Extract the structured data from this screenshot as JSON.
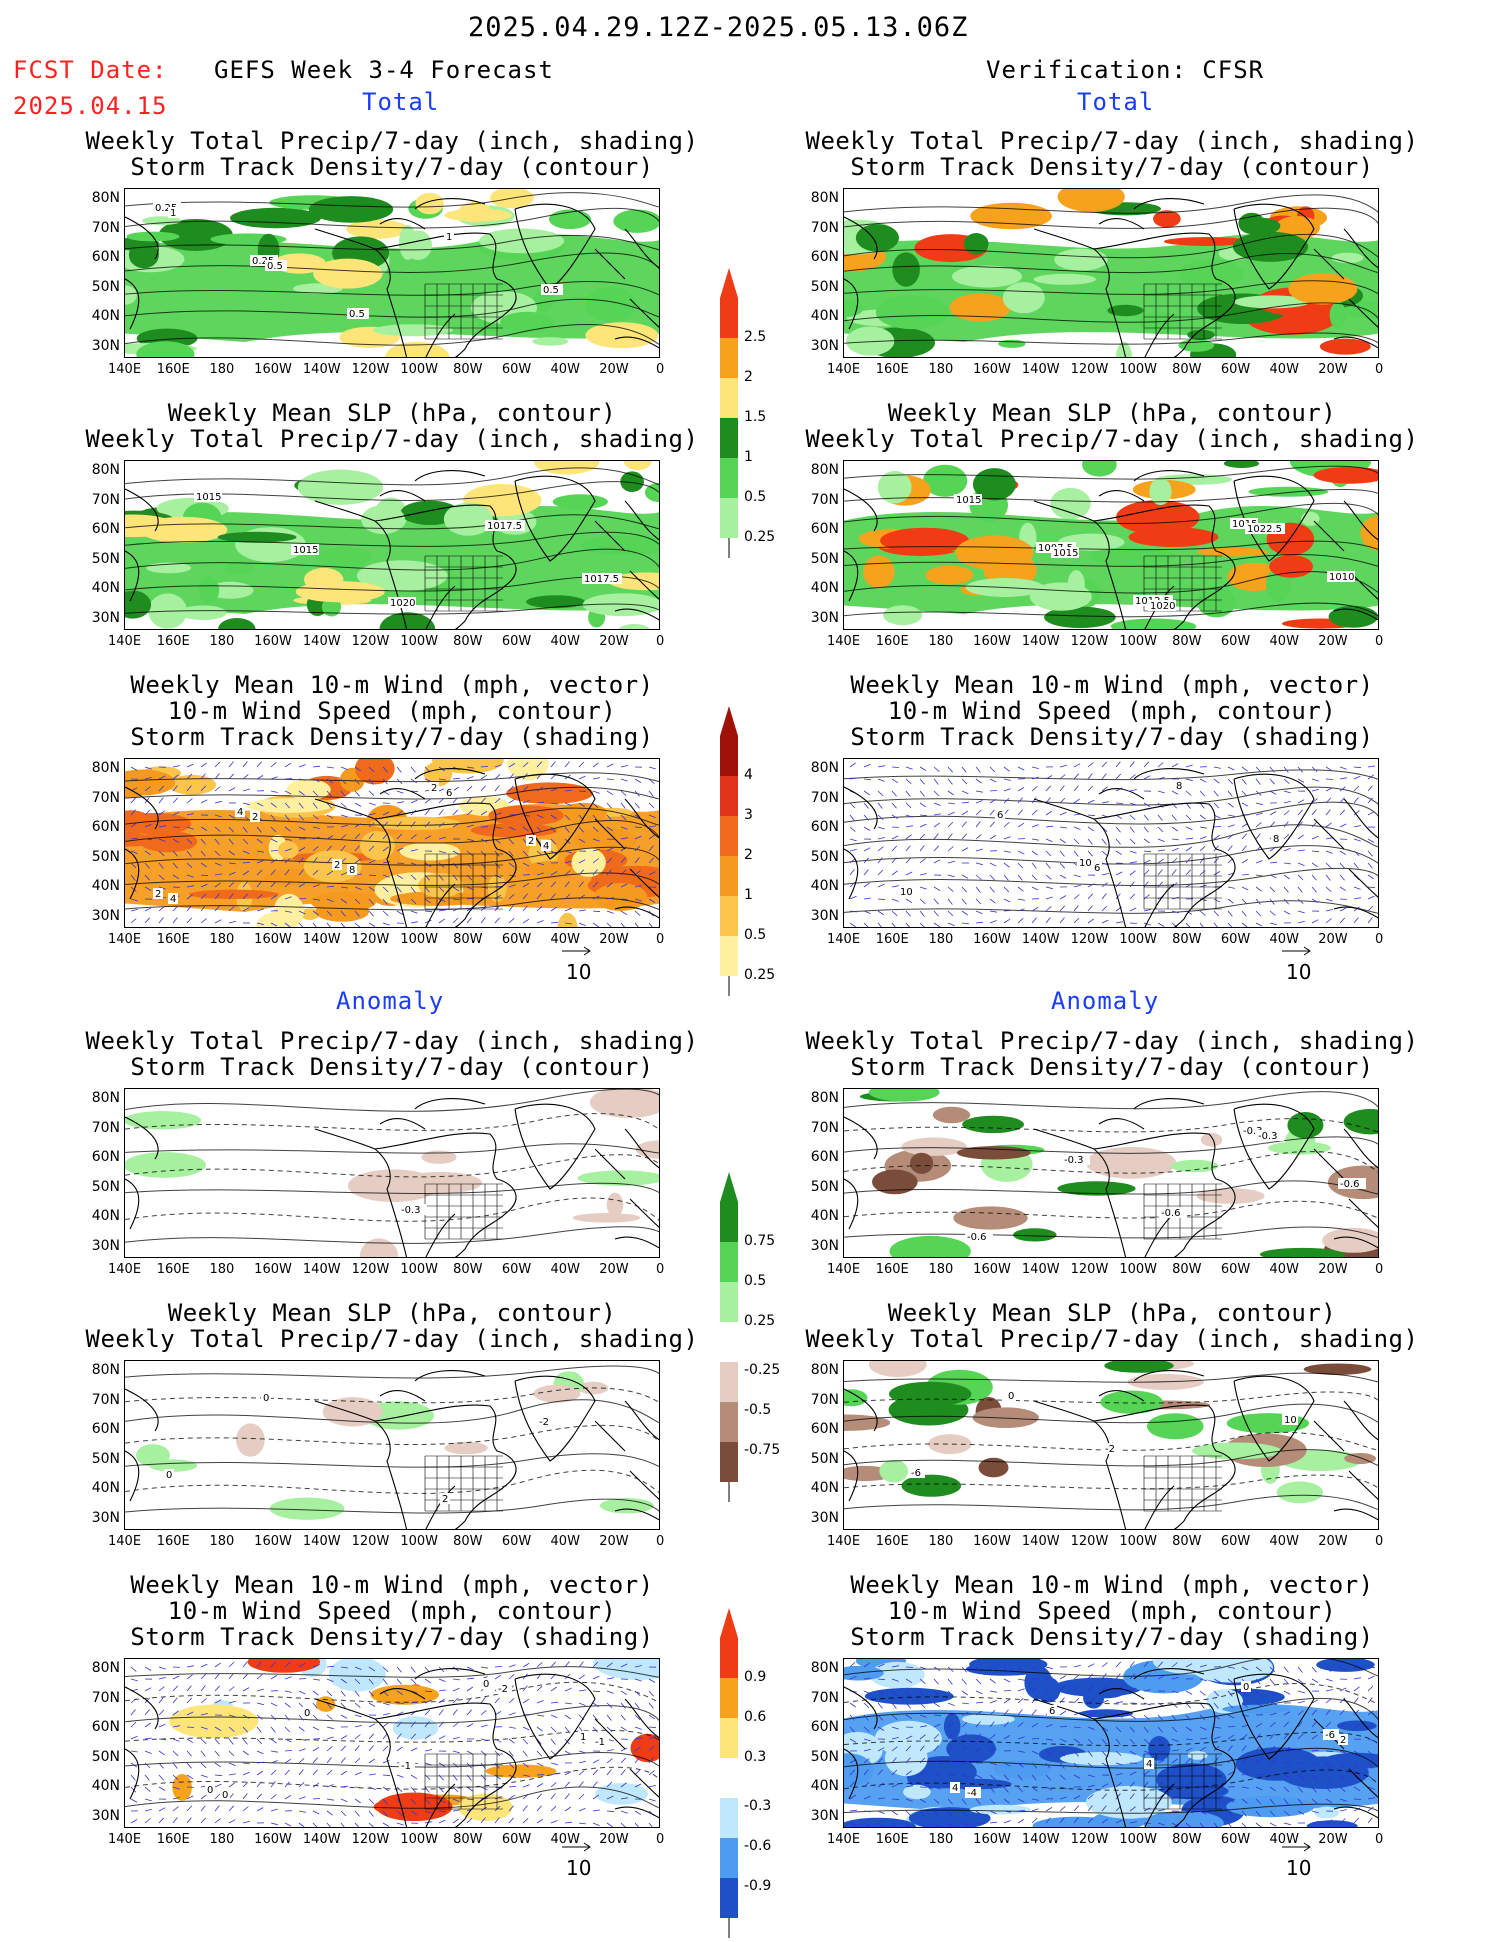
{
  "header": {
    "date_range": "2025.04.29.12Z-2025.05.13.06Z",
    "fcst_label": "FCST Date:",
    "fcst_date": "2025.04.15",
    "left_title": "GEFS Week 3-4 Forecast",
    "right_title": "Verification: CFSR",
    "total_label": "Total",
    "anomaly_label": "Anomaly"
  },
  "axes": {
    "lat_labels": [
      "80N",
      "70N",
      "60N",
      "50N",
      "40N",
      "30N"
    ],
    "lon_labels": [
      "140E",
      "160E",
      "180",
      "160W",
      "140W",
      "120W",
      "100W",
      "80W",
      "60W",
      "40W",
      "20W",
      "0"
    ]
  },
  "panels": [
    {
      "id": "fc-total-precip",
      "title": [
        "Weekly Total Precip/7-day (inch, shading)",
        "Storm Track Density/7-day (contour)"
      ],
      "labels": [
        "0.25",
        "0.25",
        "0.5",
        "1",
        "0.5",
        "1",
        "0.5"
      ]
    },
    {
      "id": "fc-total-slp",
      "title": [
        "Weekly Mean SLP (hPa, contour)",
        "Weekly Total Precip/7-day (inch, shading)"
      ],
      "labels": [
        "1015",
        "1015",
        "1020",
        "1017.5",
        "1017.5"
      ]
    },
    {
      "id": "fc-total-wind",
      "title": [
        "Weekly Mean 10-m Wind (mph, vector)",
        "10-m Wind Speed (mph, contour)",
        "Storm Track Density/7-day (shading)"
      ],
      "labels": [
        "4",
        "2",
        "2",
        "2",
        "2",
        "2",
        "8",
        "6",
        "4",
        "4"
      ]
    },
    {
      "id": "ver-total-precip",
      "title": [
        "Weekly Total Precip/7-day (inch, shading)",
        "Storm Track Density/7-day (contour)"
      ],
      "labels": []
    },
    {
      "id": "ver-total-slp",
      "title": [
        "Weekly Mean SLP (hPa, contour)",
        "Weekly Total Precip/7-day (inch, shading)"
      ],
      "labels": [
        "1007.5",
        "1012.5",
        "1015",
        "1010",
        "1015",
        "1015",
        "1020",
        "1022.5"
      ]
    },
    {
      "id": "ver-total-wind",
      "title": [
        "Weekly Mean 10-m Wind (mph, vector)",
        "10-m Wind Speed (mph, contour)",
        "Storm Track Density/7-day (shading)"
      ],
      "labels": [
        "10",
        "8",
        "8",
        "10",
        "6",
        "6"
      ]
    },
    {
      "id": "fc-anom-precip",
      "title": [
        "Weekly Total Precip/7-day (inch, shading)",
        "Storm Track Density/7-day (contour)"
      ],
      "labels": [
        "-0.3"
      ]
    },
    {
      "id": "fc-anom-slp",
      "title": [
        "Weekly Mean SLP (hPa, contour)",
        "Weekly Total Precip/7-day (inch, shading)"
      ],
      "labels": [
        "2",
        "-2",
        "0",
        "0"
      ]
    },
    {
      "id": "fc-anom-wind",
      "title": [
        "Weekly Mean 10-m Wind (mph, vector)",
        "10-m Wind Speed (mph, contour)",
        "Storm Track Density/7-day (shading)"
      ],
      "labels": [
        "0",
        "1",
        "0",
        "0",
        "-1",
        "-2",
        "-1",
        "0"
      ]
    },
    {
      "id": "ver-anom-precip",
      "title": [
        "Weekly Total Precip/7-day (inch, shading)",
        "Storm Track Density/7-day (contour)"
      ],
      "labels": [
        "-0.3",
        "-0.6",
        "-0.6",
        "-0.3",
        "-0.6",
        "-0.3"
      ]
    },
    {
      "id": "ver-anom-slp",
      "title": [
        "Weekly Mean SLP (hPa, contour)",
        "Weekly Total Precip/7-day (inch, shading)"
      ],
      "labels": [
        "10",
        "-6",
        "0",
        "-2"
      ]
    },
    {
      "id": "ver-anom-wind",
      "title": [
        "Weekly Mean 10-m Wind (mph, vector)",
        "10-m Wind Speed (mph, contour)",
        "Storm Track Density/7-day (shading)"
      ],
      "labels": [
        "-6",
        "4",
        "6",
        "4",
        "0",
        "2",
        "-4"
      ]
    }
  ],
  "colorbars": {
    "precip": {
      "labels": [
        "2.5",
        "2",
        "1.5",
        "1",
        "0.5",
        "0.25"
      ],
      "colors": [
        "#f03c14",
        "#f7a21c",
        "#fde57a",
        "#1e8c1e",
        "#55d455",
        "#a6f0a0"
      ]
    },
    "storm": {
      "labels": [
        "4",
        "3",
        "2",
        "1",
        "0.5",
        "0.25"
      ],
      "colors": [
        "#a01208",
        "#e1321a",
        "#f06a1c",
        "#f59a1e",
        "#fbc44a",
        "#fff0a0"
      ]
    },
    "precip_anom": {
      "labels": [
        "0.75",
        "0.5",
        "0.25",
        "-0.25",
        "-0.5",
        "-0.75"
      ],
      "colors": [
        "#1e8c1e",
        "#55d455",
        "#a6f0a0",
        "#e6cdc3",
        "#b48c78",
        "#7a4d3a"
      ]
    },
    "storm_anom": {
      "labels": [
        "0.9",
        "0.6",
        "0.3",
        "-0.3",
        "-0.6",
        "-0.9"
      ],
      "colors": [
        "#f03c14",
        "#f7a21c",
        "#fde57a",
        "#bfe8ff",
        "#4d9cf0",
        "#1e50c8"
      ]
    }
  },
  "vector_ref": "10",
  "colors": {
    "title_red": "#ff2020",
    "label_blue": "#1a3cff",
    "map_border": "#000000"
  }
}
